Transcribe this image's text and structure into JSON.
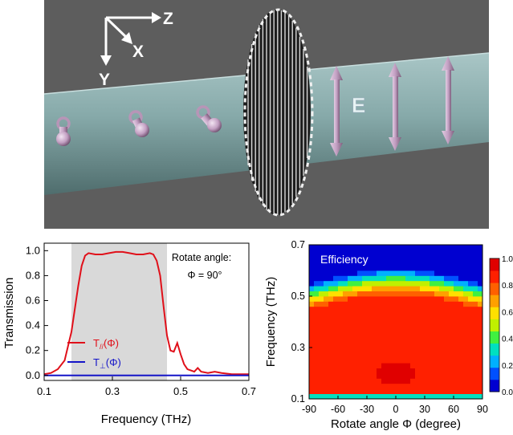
{
  "scene": {
    "axis_z": "Z",
    "axis_x": "X",
    "axis_y": "Y",
    "field_label": "E",
    "colors": {
      "background": "#5c5c5c",
      "beam": "#8fb3b3",
      "arrow": "#c9a6c9"
    }
  },
  "chart_data": [
    {
      "type": "line",
      "xlabel": "Frequency (THz)",
      "ylabel": "Transmission",
      "xlim": [
        0.1,
        0.7
      ],
      "ylim": [
        -0.04,
        1.06
      ],
      "xticks": [
        0.1,
        0.3,
        0.5,
        0.7
      ],
      "xtick_labels": [
        "0.1",
        "0.3",
        "0.5",
        "0.7"
      ],
      "yticks": [
        0.0,
        0.2,
        0.4,
        0.6,
        0.8,
        1.0
      ],
      "ytick_labels": [
        "0.0",
        "0.2",
        "0.4",
        "0.6",
        "0.8",
        "1.0"
      ],
      "annotation_line1": "Rotate angle:",
      "annotation_line2": "Φ = 90°",
      "shaded_band": [
        0.18,
        0.46
      ],
      "shade_color": "#d9d9d9",
      "series": [
        {
          "name": "T//(Φ)",
          "legend_main": "T",
          "legend_sub": "//",
          "legend_tail": "(Φ)",
          "color": "#e0101a",
          "x": [
            0.1,
            0.12,
            0.14,
            0.16,
            0.18,
            0.2,
            0.21,
            0.22,
            0.23,
            0.25,
            0.27,
            0.29,
            0.31,
            0.33,
            0.35,
            0.37,
            0.39,
            0.41,
            0.42,
            0.43,
            0.44,
            0.45,
            0.46,
            0.47,
            0.48,
            0.49,
            0.5,
            0.51,
            0.52,
            0.53,
            0.54,
            0.55,
            0.56,
            0.58,
            0.6,
            0.62,
            0.65,
            0.7
          ],
          "y": [
            0.01,
            0.02,
            0.05,
            0.12,
            0.35,
            0.72,
            0.88,
            0.96,
            0.98,
            0.97,
            0.97,
            0.98,
            0.99,
            0.99,
            0.98,
            0.97,
            0.97,
            0.98,
            0.97,
            0.92,
            0.8,
            0.55,
            0.32,
            0.2,
            0.19,
            0.26,
            0.17,
            0.09,
            0.05,
            0.04,
            0.03,
            0.06,
            0.03,
            0.02,
            0.03,
            0.02,
            0.01,
            0.01
          ]
        },
        {
          "name": "T⊥(Φ)",
          "legend_main": "T",
          "legend_sub": "⊥",
          "legend_tail": "(Φ)",
          "color": "#1515c8",
          "x": [
            0.1,
            0.2,
            0.3,
            0.4,
            0.5,
            0.6,
            0.7
          ],
          "y": [
            0.0,
            0.0,
            0.0,
            0.0,
            0.0,
            0.0,
            0.0
          ]
        }
      ]
    },
    {
      "type": "heatmap",
      "title": "Efficiency",
      "xlabel": "Rotate angle Φ (degree)",
      "ylabel": "Frequency (THz)",
      "xlim": [
        -90,
        90
      ],
      "ylim": [
        0.1,
        0.7
      ],
      "xticks": [
        -90,
        -60,
        -30,
        0,
        30,
        60,
        90
      ],
      "xtick_labels": [
        "-90",
        "-60",
        "-30",
        "0",
        "30",
        "60",
        "90"
      ],
      "yticks": [
        0.1,
        0.3,
        0.5,
        0.7
      ],
      "ytick_labels": [
        "0.1",
        "0.3",
        "0.5",
        "0.7"
      ],
      "colorbar_ticks": [
        "1.0",
        "0.8",
        "0.6",
        "0.4",
        "0.2",
        "0.0"
      ],
      "colorbar_range": [
        0.0,
        1.0
      ],
      "colormap": [
        "#0000d0",
        "#0050ff",
        "#00b0ff",
        "#00e0c0",
        "#40f040",
        "#c0f000",
        "#ffe000",
        "#ffa000",
        "#ff6000",
        "#ff2000",
        "#e00000"
      ],
      "model": {
        "upper_edge_center": 0.56,
        "upper_edge_ends": 0.5,
        "lower_edge": 0.12,
        "peak_value": 1.0,
        "band_value": 0.85
      }
    }
  ]
}
